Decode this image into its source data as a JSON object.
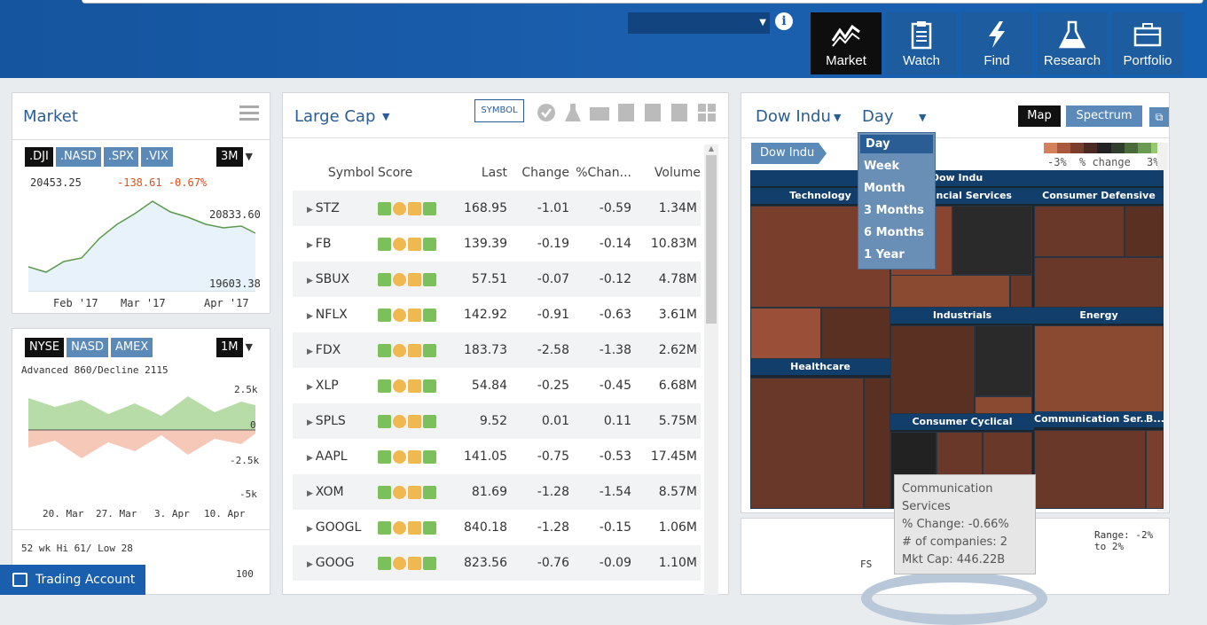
{
  "nav": [
    {
      "label": "Market",
      "icon": "chart-line-icon",
      "active": true
    },
    {
      "label": "Watch",
      "icon": "clipboard-icon"
    },
    {
      "label": "Find",
      "icon": "bolt-icon"
    },
    {
      "label": "Research",
      "icon": "flask-icon"
    },
    {
      "label": "Portfolio",
      "icon": "briefcase-icon"
    }
  ],
  "market": {
    "title": "Market",
    "indices": [
      ".DJI",
      ".NASD",
      ".SPX",
      ".VIX"
    ],
    "period": "3M",
    "price": "20453.25",
    "change": "-138.61 -0.67%",
    "hi": "20833.60",
    "lo": "19603.38",
    "xlabels": [
      "Feb '17",
      "Mar '17",
      "Apr '17"
    ]
  },
  "breadth": {
    "exchanges": [
      "NYSE",
      "NASD",
      "AMEX"
    ],
    "period": "1M",
    "text": "Advanced 860/Decline 2115",
    "yticks": [
      "2.5k",
      "0",
      "-2.5k",
      "-5k"
    ],
    "xlabels": [
      "20. Mar",
      "27. Mar",
      "3. Apr",
      "10. Apr"
    ]
  },
  "wk52": {
    "text": "52 wk Hi 61/ Low 28",
    "ytick": "100"
  },
  "trading_account": "Trading Account",
  "largecap": {
    "title": "Large Cap",
    "symbol_btn": "SYMBOL",
    "columns": [
      "Symbol",
      "Score",
      "Last",
      "Change",
      "%Chan...",
      "Volume"
    ],
    "rows": [
      {
        "sym": "STZ",
        "last": "168.95",
        "chg": "-1.01",
        "pct": "-0.59",
        "vol": "1.34M"
      },
      {
        "sym": "FB",
        "last": "139.39",
        "chg": "-0.19",
        "pct": "-0.14",
        "vol": "10.83M"
      },
      {
        "sym": "SBUX",
        "last": "57.51",
        "chg": "-0.07",
        "pct": "-0.12",
        "vol": "4.78M"
      },
      {
        "sym": "NFLX",
        "last": "142.92",
        "chg": "-0.91",
        "pct": "-0.63",
        "vol": "3.61M"
      },
      {
        "sym": "FDX",
        "last": "183.73",
        "chg": "-2.58",
        "pct": "-1.38",
        "vol": "2.62M"
      },
      {
        "sym": "XLP",
        "last": "54.84",
        "chg": "-0.25",
        "pct": "-0.45",
        "vol": "6.68M"
      },
      {
        "sym": "SPLS",
        "last": "9.52",
        "chg": "0.01",
        "pct": "0.11",
        "vol": "5.75M"
      },
      {
        "sym": "AAPL",
        "last": "141.05",
        "chg": "-0.75",
        "pct": "-0.53",
        "vol": "17.45M"
      },
      {
        "sym": "XOM",
        "last": "81.69",
        "chg": "-1.28",
        "pct": "-1.54",
        "vol": "8.57M"
      },
      {
        "sym": "GOOGL",
        "last": "840.18",
        "chg": "-1.28",
        "pct": "-0.15",
        "vol": "1.06M"
      },
      {
        "sym": "GOOG",
        "last": "823.56",
        "chg": "-0.76",
        "pct": "-0.09",
        "vol": "1.10M"
      }
    ]
  },
  "heatmap": {
    "index": "Dow Indu",
    "period": "Day",
    "map_btn": "Map",
    "spectrum_btn": "Spectrum",
    "breadcrumb": "Dow Indu",
    "legend_lo": "-3%",
    "legend_mid": "% change",
    "legend_hi": "3%",
    "root": "Dow Indu",
    "sectors": [
      "Technology",
      "Financial Services",
      "Consumer Defensive",
      "Industrials",
      "Energy",
      "Healthcare",
      "Consumer Cyclical",
      "Communication Ser...",
      "B..."
    ],
    "period_options": [
      "Day",
      "Week",
      "Month",
      "3 Months",
      "6 Months",
      "1 Year"
    ],
    "range": "Range: -2% to 2%",
    "fs_label": "FS",
    "tooltip": [
      "Communication",
      "Services",
      "% Change: -0.66%",
      "# of companies: 2",
      "Mkt Cap: 446.22B"
    ]
  }
}
